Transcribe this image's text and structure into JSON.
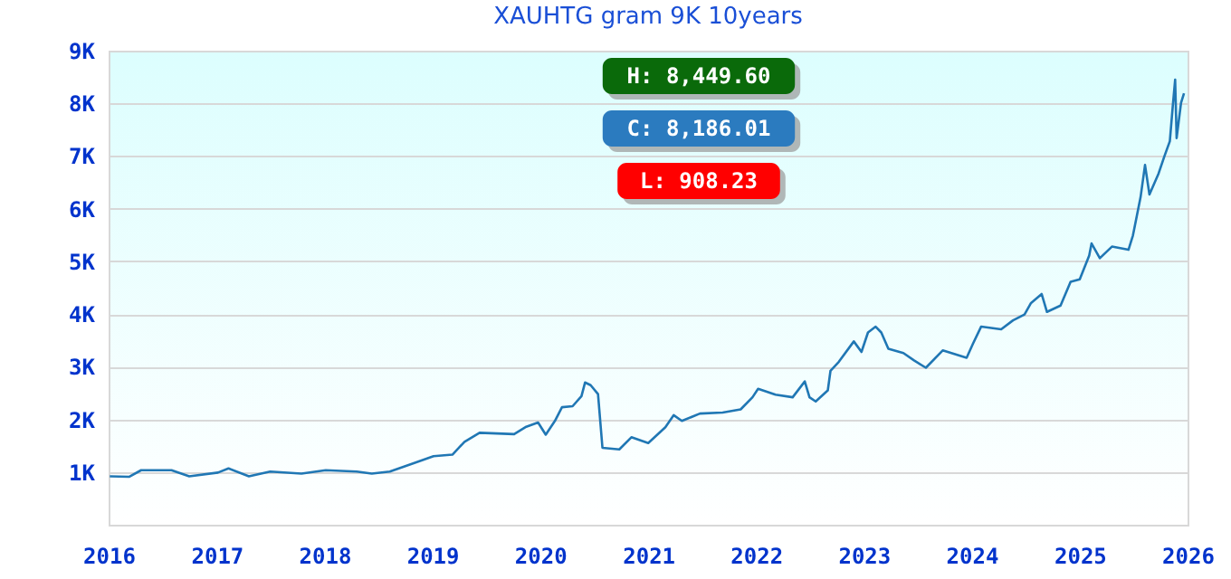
{
  "chart_data": {
    "type": "line",
    "title": "XAUHTG gram 9K 10years",
    "x": [
      "2016-01-05",
      "2016-03-10",
      "2016-04-20",
      "2016-08-01",
      "2016-09-30",
      "2017-01-05",
      "2017-02-10",
      "2017-04-20",
      "2017-07-01",
      "2017-10-15",
      "2018-01-05",
      "2018-04-20",
      "2018-06-10",
      "2018-08-10",
      "2018-09-25",
      "2019-01-05",
      "2019-03-10",
      "2019-04-20",
      "2019-06-10",
      "2019-10-05",
      "2019-11-15",
      "2019-12-25",
      "2020-01-20",
      "2020-02-20",
      "2020-03-15",
      "2020-04-20",
      "2020-05-20",
      "2020-06-01",
      "2020-06-20",
      "2020-07-15",
      "2020-07-30",
      "2020-09-25",
      "2020-11-05",
      "2021-01-01",
      "2021-02-28",
      "2021-03-28",
      "2021-04-25",
      "2021-06-25",
      "2021-09-10",
      "2021-11-10",
      "2021-12-20",
      "2022-01-08",
      "2022-03-08",
      "2022-05-05",
      "2022-06-15",
      "2022-07-01",
      "2022-07-22",
      "2022-09-01",
      "2022-09-10",
      "2022-10-08",
      "2022-11-28",
      "2022-12-24",
      "2023-01-15",
      "2023-02-10",
      "2023-03-01",
      "2023-03-25",
      "2023-05-15",
      "2023-06-20",
      "2023-07-30",
      "2023-09-25",
      "2023-12-15",
      "2024-01-05",
      "2024-02-02",
      "2024-04-10",
      "2024-05-20",
      "2024-06-28",
      "2024-07-20",
      "2024-08-25",
      "2024-09-12",
      "2024-10-28",
      "2024-12-01",
      "2025-01-01",
      "2025-02-02",
      "2025-02-10",
      "2025-03-10",
      "2025-04-20",
      "2025-06-15",
      "2025-06-30",
      "2025-07-26",
      "2025-08-10",
      "2025-08-25",
      "2025-09-25",
      "2025-10-15",
      "2025-11-02",
      "2025-11-12",
      "2025-11-20",
      "2025-11-25",
      "2025-12-10",
      "2025-12-20"
    ],
    "series": [
      {
        "color": "#2077b4",
        "values": [
          920,
          910,
          1035,
          1035,
          920,
          990,
          1070,
          920,
          1010,
          970,
          1035,
          1010,
          970,
          1010,
          1100,
          1300,
          1330,
          1575,
          1745,
          1720,
          1860,
          1940,
          1710,
          1970,
          2230,
          2250,
          2440,
          2700,
          2650,
          2480,
          1460,
          1430,
          1660,
          1550,
          1850,
          2080,
          1970,
          2110,
          2130,
          2190,
          2420,
          2580,
          2470,
          2420,
          2720,
          2420,
          2340,
          2550,
          2920,
          3090,
          3480,
          3280,
          3650,
          3760,
          3650,
          3340,
          3260,
          3120,
          2980,
          3310,
          3170,
          3430,
          3760,
          3710,
          3880,
          3990,
          4210,
          4380,
          4040,
          4160,
          4610,
          4660,
          5110,
          5340,
          5060,
          5280,
          5220,
          5490,
          6220,
          6830,
          6270,
          6670,
          7000,
          7280,
          7950,
          8450,
          7340,
          8010,
          8190
        ]
      }
    ],
    "xlim": [
      "2016-01-01",
      "2026-01-01"
    ],
    "xticks": [
      "2016",
      "2017",
      "2018",
      "2019",
      "2020",
      "2021",
      "2022",
      "2023",
      "2024",
      "2025",
      "2026"
    ],
    "ylim": [
      0,
      9000
    ],
    "yticks": [
      {
        "value": 1000,
        "label": "1K"
      },
      {
        "value": 2000,
        "label": "2K"
      },
      {
        "value": 3000,
        "label": "3K"
      },
      {
        "value": 4000,
        "label": "4K"
      },
      {
        "value": 5000,
        "label": "5K"
      },
      {
        "value": 6000,
        "label": "6K"
      },
      {
        "value": 7000,
        "label": "7K"
      },
      {
        "value": 8000,
        "label": "8K"
      },
      {
        "value": 9000,
        "label": "9K"
      }
    ],
    "grid": "y",
    "annotations": [
      "H: 8,449.60",
      "C: 8,186.01",
      "L: 908.23"
    ]
  }
}
